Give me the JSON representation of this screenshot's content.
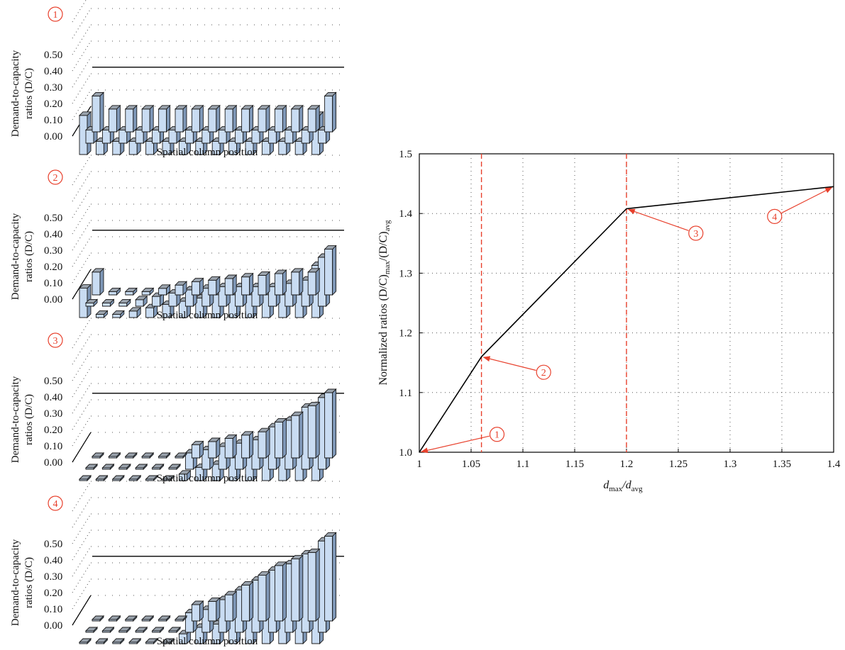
{
  "colors": {
    "bar_front": "#c9dcf2",
    "bar_top": "#9aa3ad",
    "bar_side": "#7f98b8",
    "bar_stroke": "#1a1a1a",
    "accent": "#e8402c",
    "curve": "#000000",
    "grid": "#555555"
  },
  "chart_data": [
    {
      "type": "bar3d",
      "badge": "1",
      "ylabel_line1": "Demand-to-capacity",
      "ylabel_line2": "ratios (D/C)",
      "xlabel": "Spatial column position",
      "ytick_labels": [
        "0.00",
        "0.10",
        "0.20",
        "0.30",
        "0.40",
        "0.50"
      ],
      "ylim": [
        0,
        0.5
      ],
      "reference_line": 0.24,
      "rows": [
        [
          0.22,
          0.14,
          0.14,
          0.14,
          0.14,
          0.14,
          0.14,
          0.14,
          0.14,
          0.14,
          0.14,
          0.14,
          0.14,
          0.14,
          0.22
        ],
        [
          0.08,
          0.08,
          0.08,
          0.08,
          0.08,
          0.08,
          0.08,
          0.08,
          0.08,
          0.08,
          0.08,
          0.08,
          0.08,
          0.08,
          0.08
        ],
        [
          0.24,
          0.08,
          0.08,
          0.08,
          0.08,
          0.08,
          0.08,
          0.08,
          0.08,
          0.08,
          0.08,
          0.08,
          0.08,
          0.08,
          0.24
        ]
      ]
    },
    {
      "type": "bar3d",
      "badge": "2",
      "ylabel_line1": "Demand-to-capacity",
      "ylabel_line2": "ratios (D/C)",
      "xlabel": "Spatial column position",
      "ytick_labels": [
        "0.00",
        "0.10",
        "0.20",
        "0.30",
        "0.40",
        "0.50"
      ],
      "ylim": [
        0,
        0.5
      ],
      "reference_line": 0.24,
      "rows": [
        [
          0.14,
          0.02,
          0.02,
          0.02,
          0.04,
          0.06,
          0.08,
          0.09,
          0.1,
          0.11,
          0.12,
          0.13,
          0.14,
          0.14,
          0.28
        ],
        [
          0.02,
          0.02,
          0.02,
          0.04,
          0.06,
          0.08,
          0.1,
          0.11,
          0.12,
          0.12,
          0.12,
          0.12,
          0.14,
          0.16,
          0.3
        ],
        [
          0.18,
          0.02,
          0.02,
          0.04,
          0.06,
          0.08,
          0.1,
          0.12,
          0.14,
          0.14,
          0.14,
          0.14,
          0.14,
          0.14,
          0.32
        ]
      ]
    },
    {
      "type": "bar3d",
      "badge": "3",
      "ylabel_line1": "Demand-to-capacity",
      "ylabel_line2": "ratios (D/C)",
      "xlabel": "Spatial column position",
      "ytick_labels": [
        "0.00",
        "0.10",
        "0.20",
        "0.30",
        "0.40",
        "0.50"
      ],
      "ylim": [
        0,
        0.5
      ],
      "reference_line": 0.24,
      "rows": [
        [
          0.0,
          0.0,
          0.0,
          0.0,
          0.0,
          0.0,
          0.08,
          0.1,
          0.12,
          0.14,
          0.16,
          0.22,
          0.26,
          0.32,
          0.4
        ],
        [
          0.0,
          0.0,
          0.0,
          0.0,
          0.0,
          0.0,
          0.1,
          0.12,
          0.14,
          0.16,
          0.18,
          0.26,
          0.3,
          0.38,
          0.44
        ],
        [
          0.0,
          0.0,
          0.0,
          0.0,
          0.0,
          0.0,
          0.04,
          0.08,
          0.1,
          0.14,
          0.18,
          0.2,
          0.26,
          0.32,
          0.46
        ]
      ]
    },
    {
      "type": "bar3d",
      "badge": "4",
      "ylabel_line1": "Demand-to-capacity",
      "ylabel_line2": "ratios (D/C)",
      "xlabel": "Spatial column position",
      "ytick_labels": [
        "0.00",
        "0.10",
        "0.20",
        "0.30",
        "0.40",
        "0.50"
      ],
      "ylim": [
        0,
        0.5
      ],
      "reference_line": 0.24,
      "rows": [
        [
          0.0,
          0.0,
          0.0,
          0.0,
          0.0,
          0.0,
          0.1,
          0.12,
          0.16,
          0.22,
          0.28,
          0.34,
          0.38,
          0.42,
          0.52
        ],
        [
          0.0,
          0.0,
          0.0,
          0.0,
          0.0,
          0.0,
          0.12,
          0.14,
          0.2,
          0.26,
          0.32,
          0.38,
          0.42,
          0.48,
          0.56
        ],
        [
          0.0,
          0.0,
          0.0,
          0.0,
          0.0,
          0.0,
          0.06,
          0.1,
          0.12,
          0.18,
          0.24,
          0.3,
          0.34,
          0.4,
          0.5
        ]
      ]
    },
    {
      "type": "line",
      "xlabel_main": "d",
      "xlabel_sub1": "max",
      "xlabel_mid": "/d",
      "xlabel_sub2": "avg",
      "ylabel_main": "Normalized ratios (D/C)",
      "ylabel_sub1": "max",
      "ylabel_mid": "/(D/C)",
      "ylabel_sub2": "avg",
      "xlim": [
        1,
        1.4
      ],
      "ylim": [
        1.0,
        1.5
      ],
      "xticks": [
        1,
        1.05,
        1.1,
        1.15,
        1.2,
        1.25,
        1.3,
        1.35,
        1.4
      ],
      "xtick_labels": [
        "1",
        "1.05",
        "1.1",
        "1.15",
        "1.2",
        "1.25",
        "1.3",
        "1.35",
        "1.4"
      ],
      "yticks": [
        1.0,
        1.1,
        1.2,
        1.3,
        1.4,
        1.5
      ],
      "ytick_labels": [
        "1.0",
        "1.1",
        "1.2",
        "1.3",
        "1.4",
        "1.5"
      ],
      "grid": true,
      "series": [
        {
          "x": [
            1.0,
            1.06,
            1.2,
            1.4
          ],
          "y": [
            1.0,
            1.16,
            1.408,
            1.445
          ]
        }
      ],
      "vertical_dashed_lines": [
        1.06,
        1.2
      ],
      "annotations": [
        {
          "label": "1",
          "point": [
            1.0,
            1.0
          ],
          "badge_at": [
            1.075,
            1.03
          ]
        },
        {
          "label": "2",
          "point": [
            1.06,
            1.16
          ],
          "badge_at": [
            1.12,
            1.134
          ]
        },
        {
          "label": "3",
          "point": [
            1.2,
            1.408
          ],
          "badge_at": [
            1.267,
            1.367
          ]
        },
        {
          "label": "4",
          "point": [
            1.4,
            1.445
          ],
          "badge_at": [
            1.343,
            1.395
          ]
        }
      ]
    }
  ]
}
